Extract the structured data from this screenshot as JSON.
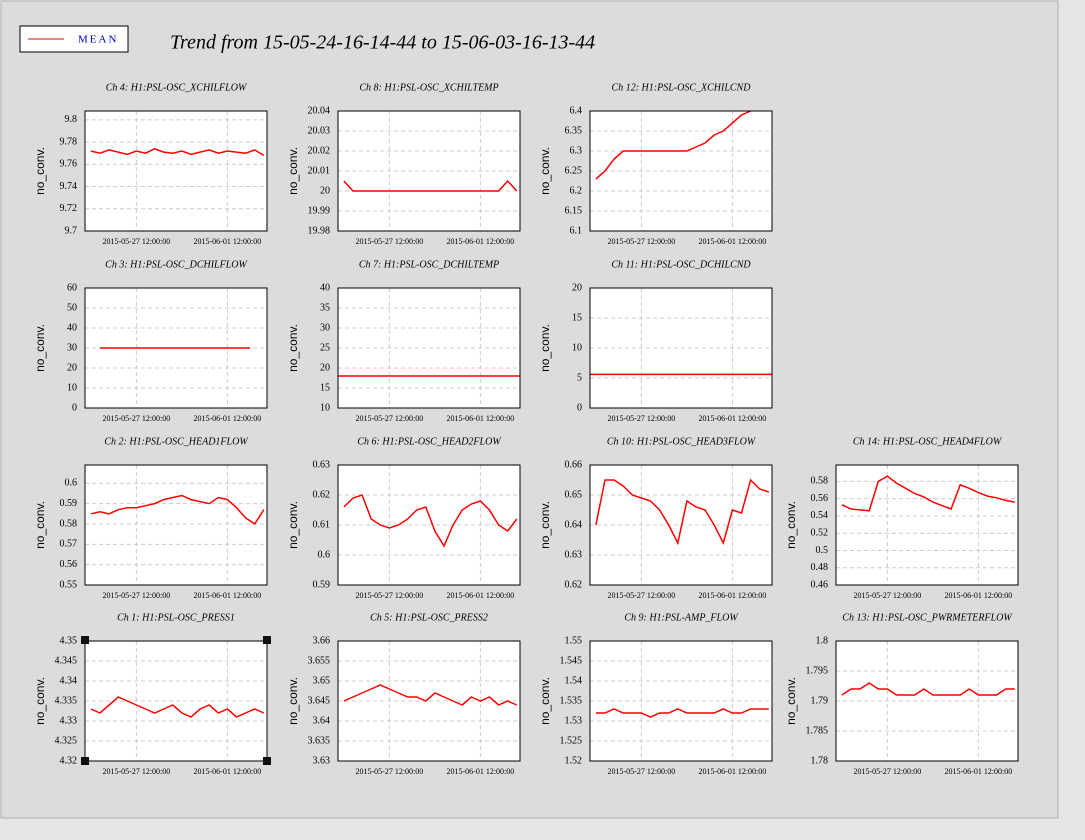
{
  "header": {
    "title": "Trend from 15-05-24-16-14-44 to 15-06-03-16-13-44"
  },
  "chart_data": [
    {
      "type": "line",
      "title": "Ch 4: H1:PSL-OSC_XCHILFLOW",
      "ylabel": "no_conv.",
      "grid": true,
      "xlim": [
        "2015-05-24 16:14:44",
        "2015-06-03 16:13:44"
      ],
      "xticks": [
        "2015-05-27 12:00:00",
        "2015-06-01 12:00:00"
      ],
      "ylim": [
        9.7,
        9.808
      ],
      "yticks": [
        9.7,
        9.72,
        9.74,
        9.76,
        9.78,
        9.8
      ],
      "x": [
        "2015-05-25 00:00:00",
        "2015-05-25 12:00:00",
        "2015-05-26 00:00:00",
        "2015-05-26 12:00:00",
        "2015-05-27 00:00:00",
        "2015-05-27 12:00:00",
        "2015-05-28 00:00:00",
        "2015-05-28 12:00:00",
        "2015-05-29 00:00:00",
        "2015-05-29 12:00:00",
        "2015-05-30 00:00:00",
        "2015-05-30 12:00:00",
        "2015-05-31 00:00:00",
        "2015-05-31 12:00:00",
        "2015-06-01 00:00:00",
        "2015-06-01 12:00:00",
        "2015-06-02 00:00:00",
        "2015-06-02 12:00:00",
        "2015-06-03 00:00:00",
        "2015-06-03 12:00:00"
      ],
      "series": [
        {
          "name": "MEAN",
          "color": "#ff0000",
          "values": [
            9.772,
            9.77,
            9.773,
            9.771,
            9.769,
            9.772,
            9.77,
            9.774,
            9.771,
            9.77,
            9.772,
            9.769,
            9.771,
            9.773,
            9.77,
            9.772,
            9.771,
            9.77,
            9.773,
            9.768
          ]
        }
      ]
    },
    {
      "type": "line",
      "title": "Ch 8: H1:PSL-OSC_XCHILTEMP",
      "ylabel": "no_conv.",
      "grid": true,
      "xlim": [
        "2015-05-24 16:14:44",
        "2015-06-03 16:13:44"
      ],
      "xticks": [
        "2015-05-27 12:00:00",
        "2015-06-01 12:00:00"
      ],
      "ylim": [
        19.98,
        20.04
      ],
      "yticks": [
        19.98,
        19.99,
        20,
        20.01,
        20.02,
        20.03,
        20.04
      ],
      "x": [
        "2015-05-25 00:00:00",
        "2015-05-25 12:00:00",
        "2015-05-26 00:00:00",
        "2015-05-26 12:00:00",
        "2015-05-27 00:00:00",
        "2015-05-27 12:00:00",
        "2015-05-28 00:00:00",
        "2015-05-28 12:00:00",
        "2015-05-29 00:00:00",
        "2015-05-29 12:00:00",
        "2015-05-30 00:00:00",
        "2015-05-30 12:00:00",
        "2015-05-31 00:00:00",
        "2015-05-31 12:00:00",
        "2015-06-01 00:00:00",
        "2015-06-01 12:00:00",
        "2015-06-02 00:00:00",
        "2015-06-02 12:00:00",
        "2015-06-03 00:00:00",
        "2015-06-03 12:00:00"
      ],
      "series": [
        {
          "name": "MEAN",
          "color": "#ff0000",
          "values": [
            20.005,
            20,
            20,
            20,
            20,
            20,
            20,
            20,
            20,
            20,
            20,
            20,
            20,
            20,
            20,
            20,
            20,
            20,
            20.005,
            20
          ]
        }
      ]
    },
    {
      "type": "line",
      "title": "Ch 12: H1:PSL-OSC_XCHILCND",
      "ylabel": "no_conv.",
      "grid": true,
      "xlim": [
        "2015-05-24 16:14:44",
        "2015-06-03 16:13:44"
      ],
      "xticks": [
        "2015-05-27 12:00:00",
        "2015-06-01 12:00:00"
      ],
      "ylim": [
        6.1,
        6.4
      ],
      "yticks": [
        6.1,
        6.15,
        6.2,
        6.25,
        6.3,
        6.35,
        6.4
      ],
      "x": [
        "2015-05-25 00:00:00",
        "2015-05-25 12:00:00",
        "2015-05-26 00:00:00",
        "2015-05-26 12:00:00",
        "2015-05-27 00:00:00",
        "2015-05-27 12:00:00",
        "2015-05-28 00:00:00",
        "2015-05-28 12:00:00",
        "2015-05-29 00:00:00",
        "2015-05-29 12:00:00",
        "2015-05-30 00:00:00",
        "2015-05-30 12:00:00",
        "2015-05-31 00:00:00",
        "2015-05-31 12:00:00",
        "2015-06-01 00:00:00",
        "2015-06-01 12:00:00",
        "2015-06-02 00:00:00",
        "2015-06-02 12:00:00",
        "2015-06-03 00:00:00",
        "2015-06-03 12:00:00"
      ],
      "series": [
        {
          "name": "MEAN",
          "color": "#ff0000",
          "values": [
            6.23,
            6.25,
            6.28,
            6.3,
            6.3,
            6.3,
            6.3,
            6.3,
            6.3,
            6.3,
            6.3,
            6.31,
            6.32,
            6.34,
            6.35,
            6.37,
            6.39,
            6.4,
            null,
            null
          ]
        }
      ]
    },
    {
      "type": "line",
      "title": "Ch 3: H1:PSL-OSC_DCHILFLOW",
      "ylabel": "no_conv.",
      "grid": true,
      "xlim": [
        "2015-05-24 16:14:44",
        "2015-06-03 16:13:44"
      ],
      "xticks": [
        "2015-05-27 12:00:00",
        "2015-06-01 12:00:00"
      ],
      "ylim": [
        0,
        60
      ],
      "yticks": [
        0,
        10,
        20,
        30,
        40,
        50,
        60
      ],
      "x": [
        "2015-05-25 12:00:00",
        "2015-06-02 18:00:00"
      ],
      "series": [
        {
          "name": "MEAN",
          "color": "#ff0000",
          "values": [
            30,
            30
          ]
        }
      ]
    },
    {
      "type": "line",
      "title": "Ch 7: H1:PSL-OSC_DCHILTEMP",
      "ylabel": "no_conv.",
      "grid": true,
      "xlim": [
        "2015-05-24 16:14:44",
        "2015-06-03 16:13:44"
      ],
      "xticks": [
        "2015-05-27 12:00:00",
        "2015-06-01 12:00:00"
      ],
      "ylim": [
        10,
        40
      ],
      "yticks": [
        10,
        15,
        20,
        25,
        30,
        35,
        40
      ],
      "x": [
        "2015-05-24 16:14:44",
        "2015-06-03 16:13:44"
      ],
      "series": [
        {
          "name": "MEAN",
          "color": "#ff0000",
          "values": [
            18,
            18
          ]
        }
      ]
    },
    {
      "type": "line",
      "title": "Ch 11: H1:PSL-OSC_DCHILCND",
      "ylabel": "no_conv.",
      "grid": true,
      "xlim": [
        "2015-05-24 16:14:44",
        "2015-06-03 16:13:44"
      ],
      "xticks": [
        "2015-05-27 12:00:00",
        "2015-06-01 12:00:00"
      ],
      "ylim": [
        0,
        20
      ],
      "yticks": [
        0,
        5,
        10,
        15,
        20
      ],
      "x": [
        "2015-05-24 16:14:44",
        "2015-06-03 16:13:44"
      ],
      "series": [
        {
          "name": "MEAN",
          "color": "#ff0000",
          "values": [
            5.6,
            5.6
          ]
        }
      ]
    },
    {
      "type": "line",
      "title": "Ch 2: H1:PSL-OSC_HEAD1FLOW",
      "ylabel": "no_conv.",
      "grid": true,
      "xlim": [
        "2015-05-24 16:14:44",
        "2015-06-03 16:13:44"
      ],
      "xticks": [
        "2015-05-27 12:00:00",
        "2015-06-01 12:00:00"
      ],
      "ylim": [
        0.55,
        0.609
      ],
      "yticks": [
        0.55,
        0.56,
        0.57,
        0.58,
        0.59,
        0.6
      ],
      "x": [
        "2015-05-25 00:00:00",
        "2015-05-25 12:00:00",
        "2015-05-26 00:00:00",
        "2015-05-26 12:00:00",
        "2015-05-27 00:00:00",
        "2015-05-27 12:00:00",
        "2015-05-28 00:00:00",
        "2015-05-28 12:00:00",
        "2015-05-29 00:00:00",
        "2015-05-29 12:00:00",
        "2015-05-30 00:00:00",
        "2015-05-30 12:00:00",
        "2015-05-31 00:00:00",
        "2015-05-31 12:00:00",
        "2015-06-01 00:00:00",
        "2015-06-01 12:00:00",
        "2015-06-02 00:00:00",
        "2015-06-02 12:00:00",
        "2015-06-03 00:00:00",
        "2015-06-03 12:00:00"
      ],
      "series": [
        {
          "name": "MEAN",
          "color": "#ff0000",
          "values": [
            0.585,
            0.586,
            0.585,
            0.587,
            0.588,
            0.588,
            0.589,
            0.59,
            0.592,
            0.593,
            0.594,
            0.592,
            0.591,
            0.59,
            0.593,
            0.592,
            0.588,
            0.583,
            0.58,
            0.587
          ]
        }
      ]
    },
    {
      "type": "line",
      "title": "Ch 6: H1:PSL-OSC_HEAD2FLOW",
      "ylabel": "no_conv.",
      "grid": true,
      "xlim": [
        "2015-05-24 16:14:44",
        "2015-06-03 16:13:44"
      ],
      "xticks": [
        "2015-05-27 12:00:00",
        "2015-06-01 12:00:00"
      ],
      "ylim": [
        0.59,
        0.63
      ],
      "yticks": [
        0.59,
        0.6,
        0.61,
        0.62,
        0.63
      ],
      "x": [
        "2015-05-25 00:00:00",
        "2015-05-25 12:00:00",
        "2015-05-26 00:00:00",
        "2015-05-26 12:00:00",
        "2015-05-27 00:00:00",
        "2015-05-27 12:00:00",
        "2015-05-28 00:00:00",
        "2015-05-28 12:00:00",
        "2015-05-29 00:00:00",
        "2015-05-29 12:00:00",
        "2015-05-30 00:00:00",
        "2015-05-30 12:00:00",
        "2015-05-31 00:00:00",
        "2015-05-31 12:00:00",
        "2015-06-01 00:00:00",
        "2015-06-01 12:00:00",
        "2015-06-02 00:00:00",
        "2015-06-02 12:00:00",
        "2015-06-03 00:00:00",
        "2015-06-03 12:00:00"
      ],
      "series": [
        {
          "name": "MEAN",
          "color": "#ff0000",
          "values": [
            0.616,
            0.619,
            0.62,
            0.612,
            0.61,
            0.609,
            0.61,
            0.612,
            0.615,
            0.616,
            0.608,
            0.603,
            0.61,
            0.615,
            0.617,
            0.618,
            0.615,
            0.61,
            0.608,
            0.612
          ]
        }
      ]
    },
    {
      "type": "line",
      "title": "Ch 10: H1:PSL-OSC_HEAD3FLOW",
      "ylabel": "no_conv.",
      "grid": true,
      "xlim": [
        "2015-05-24 16:14:44",
        "2015-06-03 16:13:44"
      ],
      "xticks": [
        "2015-05-27 12:00:00",
        "2015-06-01 12:00:00"
      ],
      "ylim": [
        0.62,
        0.66
      ],
      "yticks": [
        0.62,
        0.63,
        0.64,
        0.65,
        0.66
      ],
      "x": [
        "2015-05-25 00:00:00",
        "2015-05-25 12:00:00",
        "2015-05-26 00:00:00",
        "2015-05-26 12:00:00",
        "2015-05-27 00:00:00",
        "2015-05-27 12:00:00",
        "2015-05-28 00:00:00",
        "2015-05-28 12:00:00",
        "2015-05-29 00:00:00",
        "2015-05-29 12:00:00",
        "2015-05-30 00:00:00",
        "2015-05-30 12:00:00",
        "2015-05-31 00:00:00",
        "2015-05-31 12:00:00",
        "2015-06-01 00:00:00",
        "2015-06-01 12:00:00",
        "2015-06-02 00:00:00",
        "2015-06-02 12:00:00",
        "2015-06-03 00:00:00",
        "2015-06-03 12:00:00"
      ],
      "series": [
        {
          "name": "MEAN",
          "color": "#ff0000",
          "values": [
            0.64,
            0.655,
            0.655,
            0.653,
            0.65,
            0.649,
            0.648,
            0.645,
            0.64,
            0.634,
            0.648,
            0.646,
            0.645,
            0.64,
            0.634,
            0.645,
            0.644,
            0.655,
            0.652,
            0.651
          ]
        }
      ]
    },
    {
      "type": "line",
      "title": "Ch 14: H1:PSL-OSC_HEAD4FLOW",
      "ylabel": "no_conv.",
      "grid": true,
      "xlim": [
        "2015-05-24 16:14:44",
        "2015-06-03 16:13:44"
      ],
      "xticks": [
        "2015-05-27 12:00:00",
        "2015-06-01 12:00:00"
      ],
      "ylim": [
        0.46,
        0.599
      ],
      "yticks": [
        0.46,
        0.48,
        0.5,
        0.52,
        0.54,
        0.56,
        0.58
      ],
      "x": [
        "2015-05-25 00:00:00",
        "2015-05-25 12:00:00",
        "2015-05-26 00:00:00",
        "2015-05-26 12:00:00",
        "2015-05-27 00:00:00",
        "2015-05-27 12:00:00",
        "2015-05-28 00:00:00",
        "2015-05-28 12:00:00",
        "2015-05-29 00:00:00",
        "2015-05-29 12:00:00",
        "2015-05-30 00:00:00",
        "2015-05-30 12:00:00",
        "2015-05-31 00:00:00",
        "2015-05-31 12:00:00",
        "2015-06-01 00:00:00",
        "2015-06-01 12:00:00",
        "2015-06-02 00:00:00",
        "2015-06-02 12:00:00",
        "2015-06-03 00:00:00",
        "2015-06-03 12:00:00"
      ],
      "series": [
        {
          "name": "MEAN",
          "color": "#ff0000",
          "values": [
            0.553,
            0.548,
            0.547,
            0.546,
            0.58,
            0.586,
            0.578,
            0.572,
            0.566,
            0.562,
            0.556,
            0.552,
            0.548,
            0.576,
            0.572,
            0.567,
            0.563,
            0.561,
            0.558,
            0.556
          ]
        }
      ]
    },
    {
      "type": "line",
      "title": "Ch 1: H1:PSL-OSC_PRESS1",
      "ylabel": "no_conv.",
      "grid": true,
      "xlim": [
        "2015-05-24 16:14:44",
        "2015-06-03 16:13:44"
      ],
      "xticks": [
        "2015-05-27 12:00:00",
        "2015-06-01 12:00:00"
      ],
      "ylim": [
        4.32,
        4.35
      ],
      "yticks": [
        4.32,
        4.325,
        4.33,
        4.335,
        4.34,
        4.345,
        4.35
      ],
      "x": [
        "2015-05-25 00:00:00",
        "2015-05-25 12:00:00",
        "2015-05-26 00:00:00",
        "2015-05-26 12:00:00",
        "2015-05-27 00:00:00",
        "2015-05-27 12:00:00",
        "2015-05-28 00:00:00",
        "2015-05-28 12:00:00",
        "2015-05-29 00:00:00",
        "2015-05-29 12:00:00",
        "2015-05-30 00:00:00",
        "2015-05-30 12:00:00",
        "2015-05-31 00:00:00",
        "2015-05-31 12:00:00",
        "2015-06-01 00:00:00",
        "2015-06-01 12:00:00",
        "2015-06-02 00:00:00",
        "2015-06-02 12:00:00",
        "2015-06-03 00:00:00",
        "2015-06-03 12:00:00"
      ],
      "series": [
        {
          "name": "MEAN",
          "color": "#ff0000",
          "values": [
            4.333,
            4.332,
            4.334,
            4.336,
            4.335,
            4.334,
            4.333,
            4.332,
            4.333,
            4.334,
            4.332,
            4.331,
            4.333,
            4.334,
            4.332,
            4.333,
            4.331,
            4.332,
            4.333,
            4.332
          ]
        }
      ]
    },
    {
      "type": "line",
      "title": "Ch 5: H1:PSL-OSC_PRESS2",
      "ylabel": "no_conv.",
      "grid": true,
      "xlim": [
        "2015-05-24 16:14:44",
        "2015-06-03 16:13:44"
      ],
      "xticks": [
        "2015-05-27 12:00:00",
        "2015-06-01 12:00:00"
      ],
      "ylim": [
        3.63,
        3.66
      ],
      "yticks": [
        3.63,
        3.635,
        3.64,
        3.645,
        3.65,
        3.655,
        3.66
      ],
      "x": [
        "2015-05-25 00:00:00",
        "2015-05-25 12:00:00",
        "2015-05-26 00:00:00",
        "2015-05-26 12:00:00",
        "2015-05-27 00:00:00",
        "2015-05-27 12:00:00",
        "2015-05-28 00:00:00",
        "2015-05-28 12:00:00",
        "2015-05-29 00:00:00",
        "2015-05-29 12:00:00",
        "2015-05-30 00:00:00",
        "2015-05-30 12:00:00",
        "2015-05-31 00:00:00",
        "2015-05-31 12:00:00",
        "2015-06-01 00:00:00",
        "2015-06-01 12:00:00",
        "2015-06-02 00:00:00",
        "2015-06-02 12:00:00",
        "2015-06-03 00:00:00",
        "2015-06-03 12:00:00"
      ],
      "series": [
        {
          "name": "MEAN",
          "color": "#ff0000",
          "values": [
            3.645,
            3.646,
            3.647,
            3.648,
            3.649,
            3.648,
            3.647,
            3.646,
            3.646,
            3.645,
            3.647,
            3.646,
            3.645,
            3.644,
            3.646,
            3.645,
            3.646,
            3.644,
            3.645,
            3.644
          ]
        }
      ]
    },
    {
      "type": "line",
      "title": "Ch 9: H1:PSL-AMP_FLOW",
      "ylabel": "no_conv.",
      "grid": true,
      "xlim": [
        "2015-05-24 16:14:44",
        "2015-06-03 16:13:44"
      ],
      "xticks": [
        "2015-05-27 12:00:00",
        "2015-06-01 12:00:00"
      ],
      "ylim": [
        1.52,
        1.55
      ],
      "yticks": [
        1.52,
        1.525,
        1.53,
        1.535,
        1.54,
        1.545,
        1.55
      ],
      "x": [
        "2015-05-25 00:00:00",
        "2015-05-25 12:00:00",
        "2015-05-26 00:00:00",
        "2015-05-26 12:00:00",
        "2015-05-27 00:00:00",
        "2015-05-27 12:00:00",
        "2015-05-28 00:00:00",
        "2015-05-28 12:00:00",
        "2015-05-29 00:00:00",
        "2015-05-29 12:00:00",
        "2015-05-30 00:00:00",
        "2015-05-30 12:00:00",
        "2015-05-31 00:00:00",
        "2015-05-31 12:00:00",
        "2015-06-01 00:00:00",
        "2015-06-01 12:00:00",
        "2015-06-02 00:00:00",
        "2015-06-02 12:00:00",
        "2015-06-03 00:00:00",
        "2015-06-03 12:00:00"
      ],
      "series": [
        {
          "name": "MEAN",
          "color": "#ff0000",
          "values": [
            1.532,
            1.532,
            1.533,
            1.532,
            1.532,
            1.532,
            1.531,
            1.532,
            1.532,
            1.533,
            1.532,
            1.532,
            1.532,
            1.532,
            1.533,
            1.532,
            1.532,
            1.533,
            1.533,
            1.533
          ]
        }
      ]
    },
    {
      "type": "line",
      "title": "Ch 13: H1:PSL-OSC_PWRMETERFLOW",
      "ylabel": "no_conv.",
      "grid": true,
      "xlim": [
        "2015-05-24 16:14:44",
        "2015-06-03 16:13:44"
      ],
      "xticks": [
        "2015-05-27 12:00:00",
        "2015-06-01 12:00:00"
      ],
      "ylim": [
        1.78,
        1.8
      ],
      "yticks": [
        1.78,
        1.785,
        1.79,
        1.795,
        1.8
      ],
      "x": [
        "2015-05-25 00:00:00",
        "2015-05-25 12:00:00",
        "2015-05-26 00:00:00",
        "2015-05-26 12:00:00",
        "2015-05-27 00:00:00",
        "2015-05-27 12:00:00",
        "2015-05-28 00:00:00",
        "2015-05-28 12:00:00",
        "2015-05-29 00:00:00",
        "2015-05-29 12:00:00",
        "2015-05-30 00:00:00",
        "2015-05-30 12:00:00",
        "2015-05-31 00:00:00",
        "2015-05-31 12:00:00",
        "2015-06-01 00:00:00",
        "2015-06-01 12:00:00",
        "2015-06-02 00:00:00",
        "2015-06-02 12:00:00",
        "2015-06-03 00:00:00",
        "2015-06-03 12:00:00"
      ],
      "series": [
        {
          "name": "MEAN",
          "color": "#ff0000",
          "values": [
            1.791,
            1.792,
            1.792,
            1.793,
            1.792,
            1.792,
            1.791,
            1.791,
            1.791,
            1.792,
            1.791,
            1.791,
            1.791,
            1.791,
            1.792,
            1.791,
            1.791,
            1.791,
            1.792,
            1.792
          ]
        }
      ]
    }
  ]
}
